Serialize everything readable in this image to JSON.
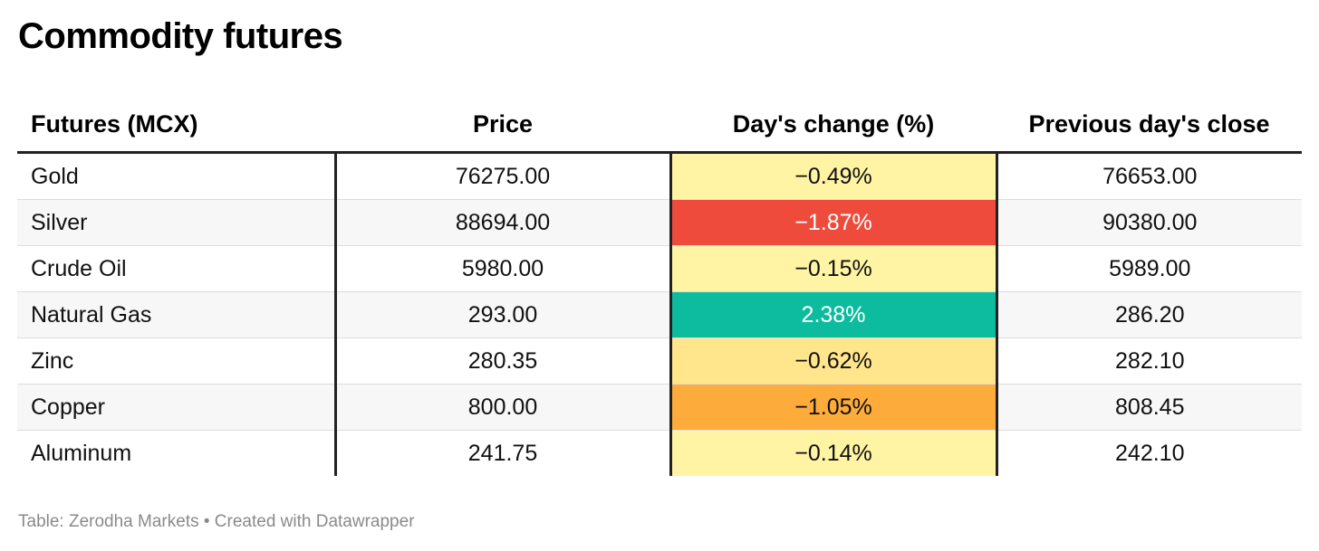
{
  "title": "Commodity futures",
  "chart_data": {
    "type": "table",
    "title": "Commodity futures",
    "columns": [
      "Futures (MCX)",
      "Price",
      "Day's change (%)",
      "Previous day's close"
    ],
    "rows": [
      {
        "name": "Gold",
        "price": "76275.00",
        "change": "−0.49%",
        "change_value": -0.49,
        "prev_close": "76653.00",
        "color": "#fff3a4",
        "light_text": false
      },
      {
        "name": "Silver",
        "price": "88694.00",
        "change": "−1.87%",
        "change_value": -1.87,
        "prev_close": "90380.00",
        "color": "#ef4b3d",
        "light_text": true
      },
      {
        "name": "Crude Oil",
        "price": "5980.00",
        "change": "−0.15%",
        "change_value": -0.15,
        "prev_close": "5989.00",
        "color": "#fff3a4",
        "light_text": false
      },
      {
        "name": "Natural Gas",
        "price": "293.00",
        "change": "2.38%",
        "change_value": 2.38,
        "prev_close": "286.20",
        "color": "#0dbc9e",
        "light_text": true
      },
      {
        "name": "Zinc",
        "price": "280.35",
        "change": "−0.62%",
        "change_value": -0.62,
        "prev_close": "282.10",
        "color": "#ffe58c",
        "light_text": false
      },
      {
        "name": "Copper",
        "price": "800.00",
        "change": "−1.05%",
        "change_value": -1.05,
        "prev_close": "808.45",
        "color": "#fdac3c",
        "light_text": false
      },
      {
        "name": "Aluminum",
        "price": "241.75",
        "change": "−0.14%",
        "change_value": -0.14,
        "prev_close": "242.10",
        "color": "#fff3a4",
        "light_text": false
      }
    ]
  },
  "footer": "Table: Zerodha Markets • Created with Datawrapper"
}
